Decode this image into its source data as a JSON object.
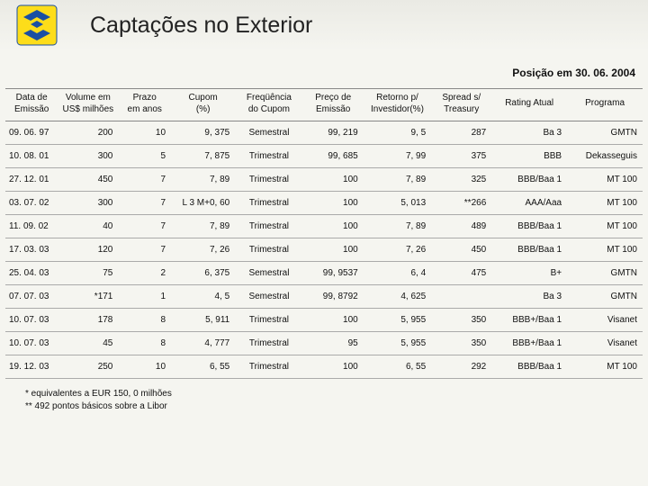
{
  "header": {
    "title": "Captações no Exterior",
    "logo_colors": {
      "bg": "#fddd1a",
      "fg": "#1a4fa3",
      "border": "#1a4fa3"
    }
  },
  "subtitle": "Posição em 30. 06. 2004",
  "table": {
    "columns": [
      {
        "label": "Data de\nEmissão",
        "width": "6%",
        "align": "left"
      },
      {
        "label": "Volume em\nUS$ milhões",
        "width": "8%",
        "align": "right"
      },
      {
        "label": "Prazo\nem anos",
        "width": "7%",
        "align": "right"
      },
      {
        "label": "Cupom\n(%)",
        "width": "8%",
        "align": "right"
      },
      {
        "label": "Freqüência\ndo Cupom",
        "width": "9%",
        "align": "center"
      },
      {
        "label": "Preço de\nEmissão",
        "width": "8%",
        "align": "right"
      },
      {
        "label": "Retorno p/\nInvestidor(%)",
        "width": "9%",
        "align": "right"
      },
      {
        "label": "Spread s/\nTreasury",
        "width": "8%",
        "align": "right"
      },
      {
        "label": "Rating Atual",
        "width": "10%",
        "align": "right"
      },
      {
        "label": "Programa",
        "width": "10%",
        "align": "right"
      }
    ],
    "rows": [
      [
        "09. 06. 97",
        "200",
        "10",
        "9, 375",
        "Semestral",
        "99, 219",
        "9, 5",
        "287",
        "Ba 3",
        "GMTN"
      ],
      [
        "10. 08. 01",
        "300",
        "5",
        "7, 875",
        "Trimestral",
        "99, 685",
        "7, 99",
        "375",
        "BBB",
        "Dekasseguis"
      ],
      [
        "27. 12. 01",
        "450",
        "7",
        "7, 89",
        "Trimestral",
        "100",
        "7, 89",
        "325",
        "BBB/Baa 1",
        "MT 100"
      ],
      [
        "03. 07. 02",
        "300",
        "7",
        "L 3 M+0, 60",
        "Trimestral",
        "100",
        "5, 013",
        "**266",
        "AAA/Aaa",
        "MT 100"
      ],
      [
        "11. 09. 02",
        "40",
        "7",
        "7, 89",
        "Trimestral",
        "100",
        "7, 89",
        "489",
        "BBB/Baa 1",
        "MT 100"
      ],
      [
        "17. 03. 03",
        "120",
        "7",
        "7, 26",
        "Trimestral",
        "100",
        "7, 26",
        "450",
        "BBB/Baa 1",
        "MT 100"
      ],
      [
        "25. 04. 03",
        "75",
        "2",
        "6, 375",
        "Semestral",
        "99, 9537",
        "6, 4",
        "475",
        "B+",
        "GMTN"
      ],
      [
        "07. 07. 03",
        "*171",
        "1",
        "4, 5",
        "Semestral",
        "99, 8792",
        "4, 625",
        "",
        "Ba 3",
        "GMTN"
      ],
      [
        "10. 07. 03",
        "178",
        "8",
        "5, 911",
        "Trimestral",
        "100",
        "5, 955",
        "350",
        "BBB+/Baa 1",
        "Visanet"
      ],
      [
        "10. 07. 03",
        "45",
        "8",
        "4, 777",
        "Trimestral",
        "95",
        "5, 955",
        "350",
        "BBB+/Baa 1",
        "Visanet"
      ],
      [
        "19. 12. 03",
        "250",
        "10",
        "6, 55",
        "Trimestral",
        "100",
        "6, 55",
        "292",
        "BBB/Baa 1",
        "MT 100"
      ]
    ]
  },
  "footnotes": [
    "*  equivalentes a EUR 150, 0 milhões",
    "** 492 pontos básicos sobre a Libor"
  ],
  "colors": {
    "page_bg": "#f5f5f0",
    "text": "#111",
    "rule": "#aaa"
  }
}
